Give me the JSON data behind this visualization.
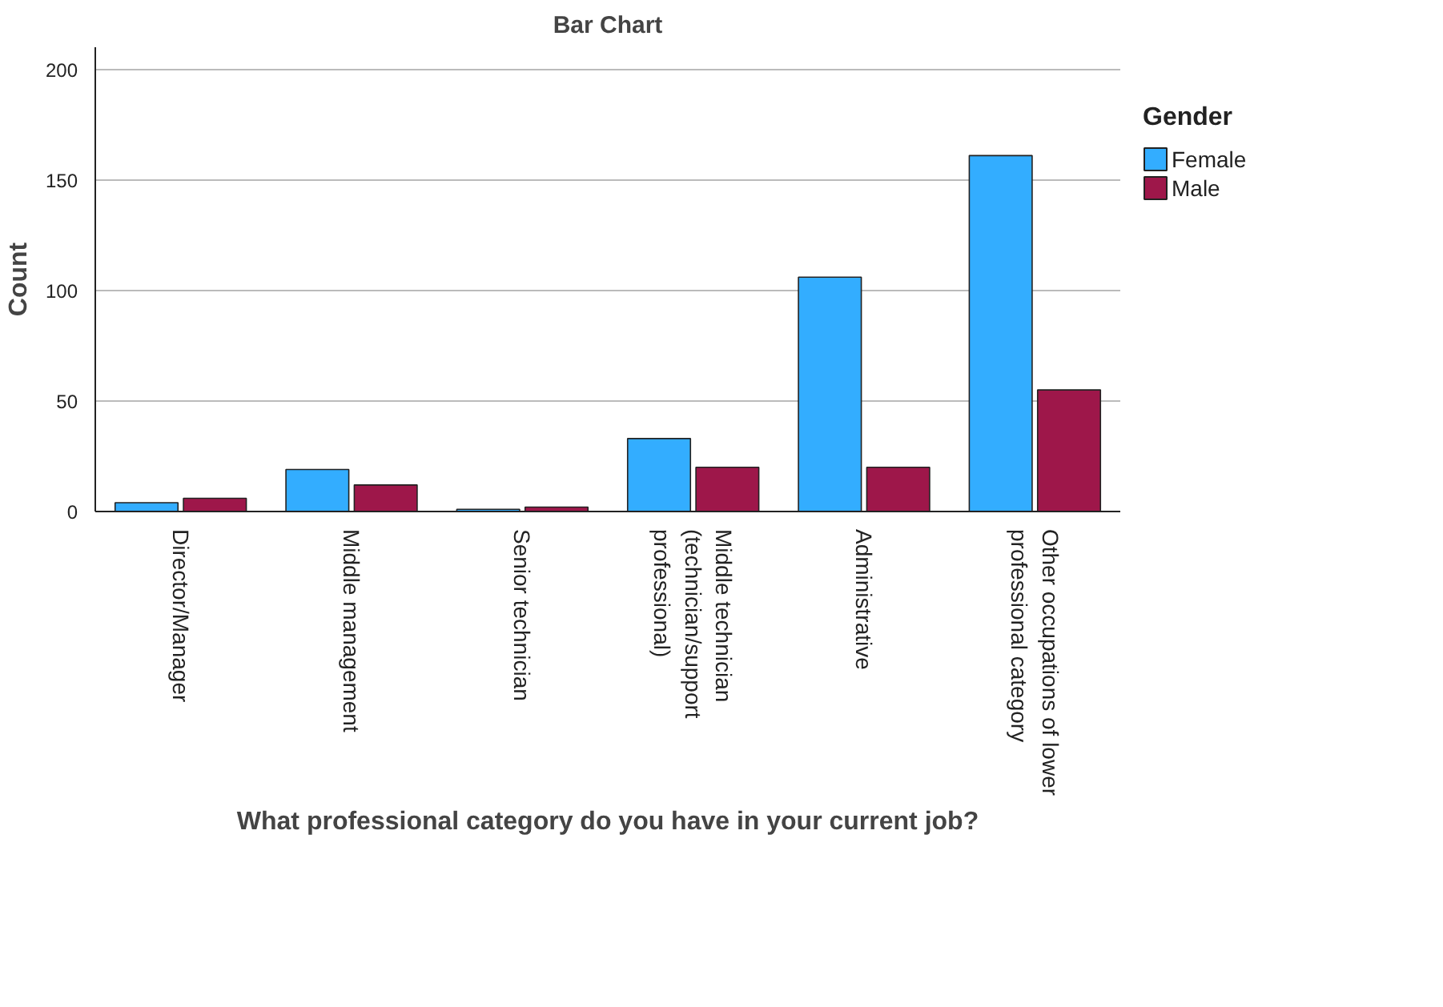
{
  "chart_data": {
    "type": "bar",
    "title": "Bar Chart",
    "xlabel": "What professional category do you have in your current job?",
    "ylabel": "Count",
    "legend_title": "Gender",
    "categories": [
      "Director/Manager",
      "Middle management",
      "Senior technician",
      "Middle technician (technician/support professional)",
      "Administrative",
      "Other occupations of lower professional category"
    ],
    "series": [
      {
        "name": "Female",
        "color": "#33adff",
        "values": [
          4,
          19,
          1,
          33,
          106,
          161
        ]
      },
      {
        "name": "Male",
        "color": "#9e174a",
        "values": [
          6,
          12,
          2,
          20,
          20,
          55
        ]
      }
    ],
    "ylim": [
      0,
      210
    ],
    "yticks": [
      0,
      50,
      100,
      150,
      200
    ],
    "grid": "y",
    "legend": "top right"
  }
}
